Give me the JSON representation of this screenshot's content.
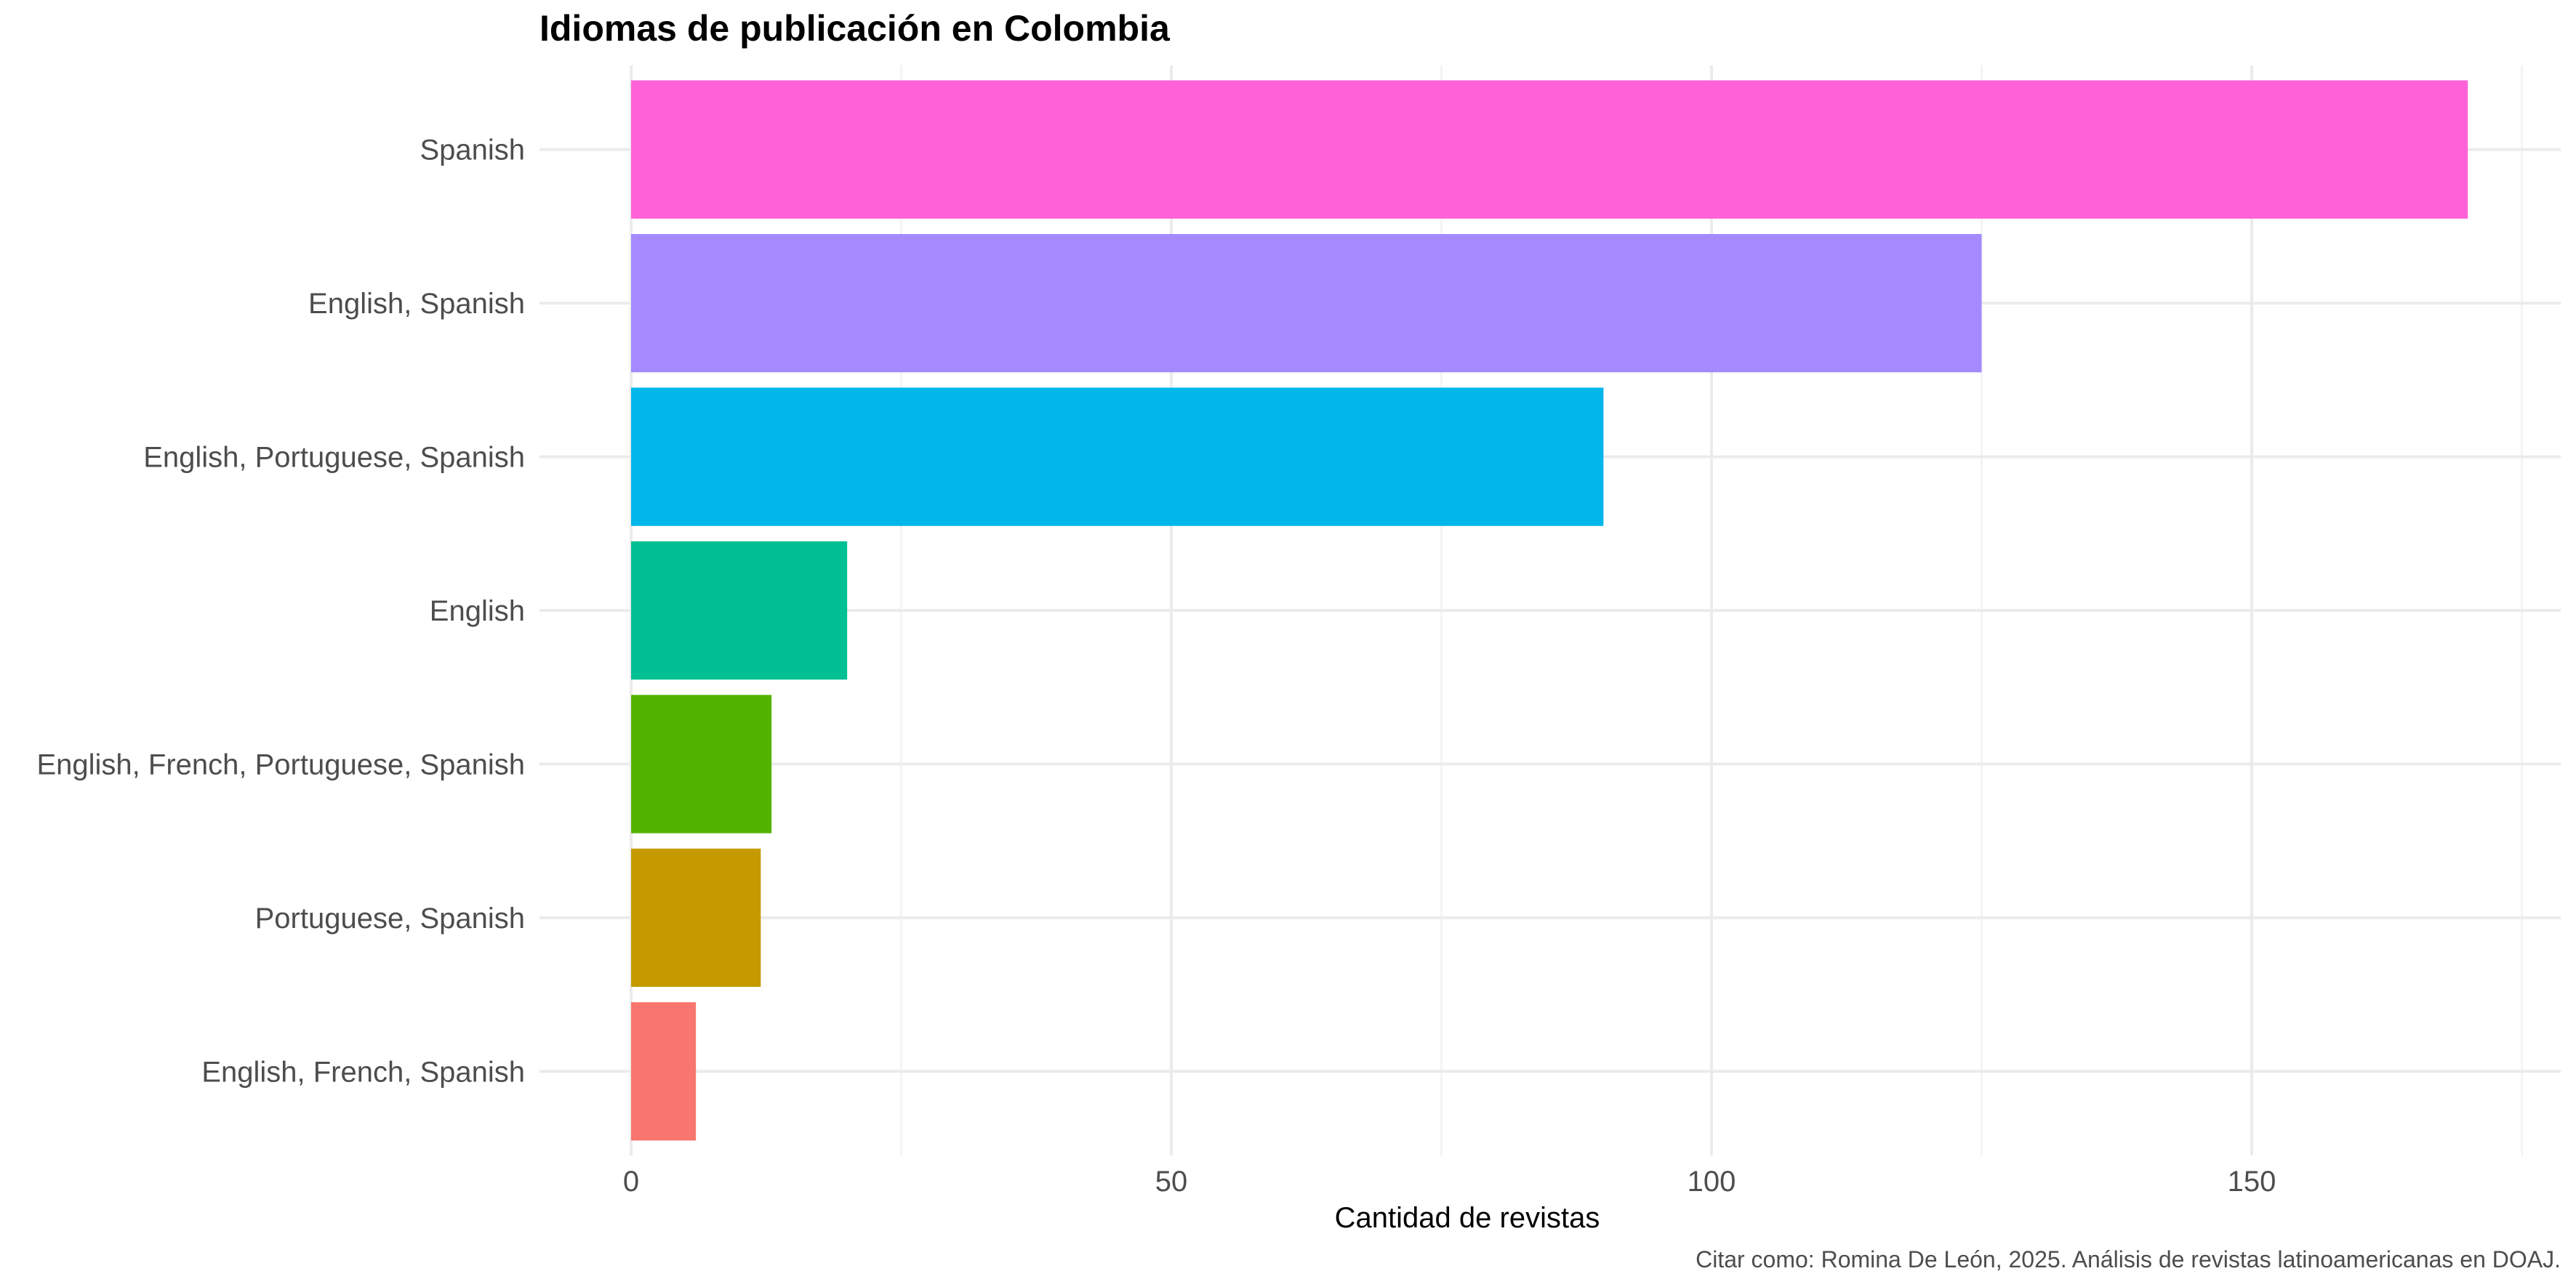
{
  "chart_data": {
    "type": "bar",
    "orientation": "horizontal",
    "title": "Idiomas de publicación en Colombia",
    "xlabel": "Cantidad de revistas",
    "ylabel": "",
    "caption": "Citar como: Romina De León, 2025. Análisis de revistas latinoamericanas en DOAJ.",
    "xlim": [
      0,
      176
    ],
    "xticks": [
      0,
      50,
      100,
      150
    ],
    "xtick_labels": [
      "0",
      "50",
      "100",
      "150"
    ],
    "grid": true,
    "categories": [
      "Spanish",
      "English, Spanish",
      "English, Portuguese, Spanish",
      "English",
      "English, French, Portuguese, Spanish",
      "Portuguese, Spanish",
      "English, French, Spanish"
    ],
    "values": [
      170,
      125,
      90,
      20,
      13,
      12,
      6
    ],
    "colors": [
      "#FF61D8",
      "#A58AFF",
      "#00B6EB",
      "#00C094",
      "#53B400",
      "#C49A00",
      "#F8766D"
    ]
  }
}
